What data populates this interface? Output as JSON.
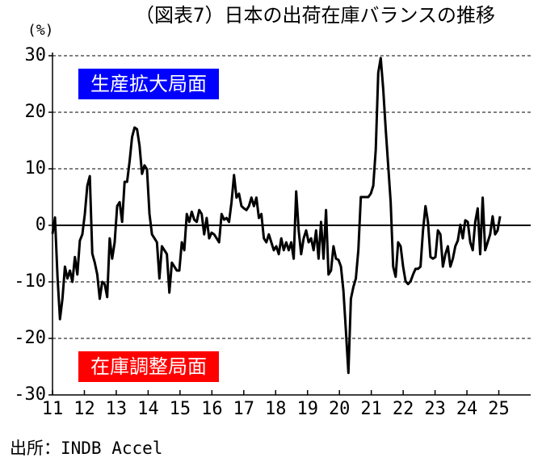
{
  "chart_data": {
    "type": "line",
    "title": "（図表7）日本の出荷在庫バランスの推移",
    "y_label": "(%)",
    "source": "出所：INDB Accel",
    "annotations": [
      {
        "text": "生産拡大局面",
        "color": "#0000ff",
        "y": 25
      },
      {
        "text": "在庫調整局面",
        "color": "#ff0000",
        "y": -25
      }
    ],
    "color": "#000000",
    "grid": true,
    "zero_line": true,
    "xlim": [
      11,
      26
    ],
    "xticks": [
      11,
      12,
      13,
      14,
      15,
      16,
      17,
      18,
      19,
      20,
      21,
      22,
      23,
      24,
      25
    ],
    "ylim": [
      -30,
      30
    ],
    "yticks": [
      -30,
      -20,
      -10,
      0,
      10,
      20,
      30
    ],
    "x": [
      11,
      11.078,
      11.156,
      11.234,
      11.312,
      11.39,
      11.468,
      11.546,
      11.624,
      11.702,
      11.78,
      11.858,
      11.936,
      12.014,
      12.092,
      12.17,
      12.248,
      12.326,
      12.404,
      12.482,
      12.56,
      12.638,
      12.716,
      12.794,
      12.872,
      12.95,
      13.028,
      13.106,
      13.184,
      13.262,
      13.34,
      13.418,
      13.496,
      13.574,
      13.652,
      13.73,
      13.808,
      13.886,
      13.964,
      14.042,
      14.12,
      14.198,
      14.276,
      14.354,
      14.432,
      14.51,
      14.588,
      14.666,
      14.744,
      14.822,
      14.9,
      14.978,
      15.056,
      15.134,
      15.212,
      15.29,
      15.368,
      15.446,
      15.524,
      15.602,
      15.68,
      15.758,
      15.836,
      15.914,
      15.992,
      16.07,
      16.148,
      16.226,
      16.304,
      16.382,
      16.46,
      16.538,
      16.616,
      16.694,
      16.772,
      16.85,
      16.928,
      17.006,
      17.084,
      17.162,
      17.24,
      17.318,
      17.396,
      17.474,
      17.552,
      17.63,
      17.708,
      17.786,
      17.864,
      17.942,
      18.02,
      18.098,
      18.176,
      18.254,
      18.332,
      18.41,
      18.488,
      18.566,
      18.644,
      18.722,
      18.8,
      18.878,
      18.956,
      19.034,
      19.112,
      19.19,
      19.268,
      19.346,
      19.424,
      19.502,
      19.58,
      19.658,
      19.736,
      19.814,
      19.892,
      19.97,
      20.048,
      20.126,
      20.204,
      20.282,
      20.36,
      20.438,
      20.516,
      20.594,
      20.672,
      20.75,
      20.828,
      20.906,
      20.984,
      21.062,
      21.14,
      21.218,
      21.296,
      21.374,
      21.452,
      21.53,
      21.608,
      21.686,
      21.764,
      21.842,
      21.92,
      21.998,
      22.076,
      22.154,
      22.232,
      22.31,
      22.388,
      22.466,
      22.544,
      22.622,
      22.7,
      22.778,
      22.856,
      22.934,
      23.012,
      23.09,
      23.168,
      23.246,
      23.324,
      23.402,
      23.48,
      23.558,
      23.636,
      23.714,
      23.792,
      23.87,
      23.948,
      24.026,
      24.104,
      24.182,
      24.26,
      24.338,
      24.416,
      24.494,
      24.572,
      24.65,
      24.728,
      24.806,
      24.884,
      24.962,
      25.04
    ],
    "values": [
      -1.5,
      1.4,
      -9,
      -16.6,
      -13,
      -7.3,
      -9.4,
      -8,
      -10,
      -5.6,
      -8.7,
      -2.7,
      -1.6,
      2,
      7,
      8.7,
      -5,
      -6.6,
      -8.7,
      -13,
      -10,
      -10.4,
      -12.7,
      -2.3,
      -5.9,
      -3,
      3.4,
      4.1,
      0.6,
      7.7,
      7.7,
      11.3,
      15.6,
      17.3,
      17,
      14.1,
      9.1,
      10.6,
      9.9,
      2,
      -1.6,
      -2.3,
      -3,
      -9.4,
      -3.7,
      -4.4,
      -5.1,
      -11.9,
      -6.6,
      -7.3,
      -8,
      -8,
      -3,
      -4.4,
      2,
      0.6,
      2.4,
      1,
      0.6,
      2.7,
      2,
      -1.6,
      1.3,
      -2.3,
      -1.3,
      -1.6,
      -2.3,
      -3,
      2,
      1,
      1.3,
      0.6,
      4.1,
      8.9,
      4.9,
      5.6,
      3.4,
      3,
      2.7,
      3.4,
      4.9,
      3.4,
      4.9,
      1.3,
      2,
      -2.3,
      -3,
      -1.6,
      -3,
      -4.4,
      -3.7,
      -5.1,
      -2.3,
      -4.4,
      -3,
      -4.4,
      -3,
      -5.9,
      6,
      -0.9,
      -5.1,
      -2.3,
      -0.9,
      -3,
      -2.3,
      -4.4,
      -0.9,
      -5.9,
      0.6,
      -5.9,
      2.7,
      -8.7,
      -8,
      -3.7,
      -5.9,
      -6.1,
      -7.3,
      -11.6,
      -18.7,
      -26.1,
      -13,
      -10.9,
      -9.4,
      -4.4,
      5,
      5,
      5,
      5,
      5.6,
      7,
      13.4,
      27,
      29.6,
      24.1,
      17,
      10.6,
      4.1,
      -7.3,
      -9.1,
      -3,
      -3.7,
      -7.3,
      -9.9,
      -10.4,
      -9.9,
      -8.7,
      -7.7,
      -7.7,
      -7.3,
      -0.9,
      3.4,
      0.6,
      -5.6,
      -5.9,
      -5.6,
      -0.9,
      -1.6,
      -7.3,
      -5.1,
      -3.7,
      -7.3,
      -5.9,
      -3.7,
      -2.7,
      0.1,
      -2.3,
      0.9,
      0.6,
      -3,
      -4.4,
      0.6,
      3,
      -5.1,
      4.9,
      -4.4,
      -3,
      -1.6,
      1.6,
      -1.6,
      -0.9,
      1.6
    ]
  }
}
